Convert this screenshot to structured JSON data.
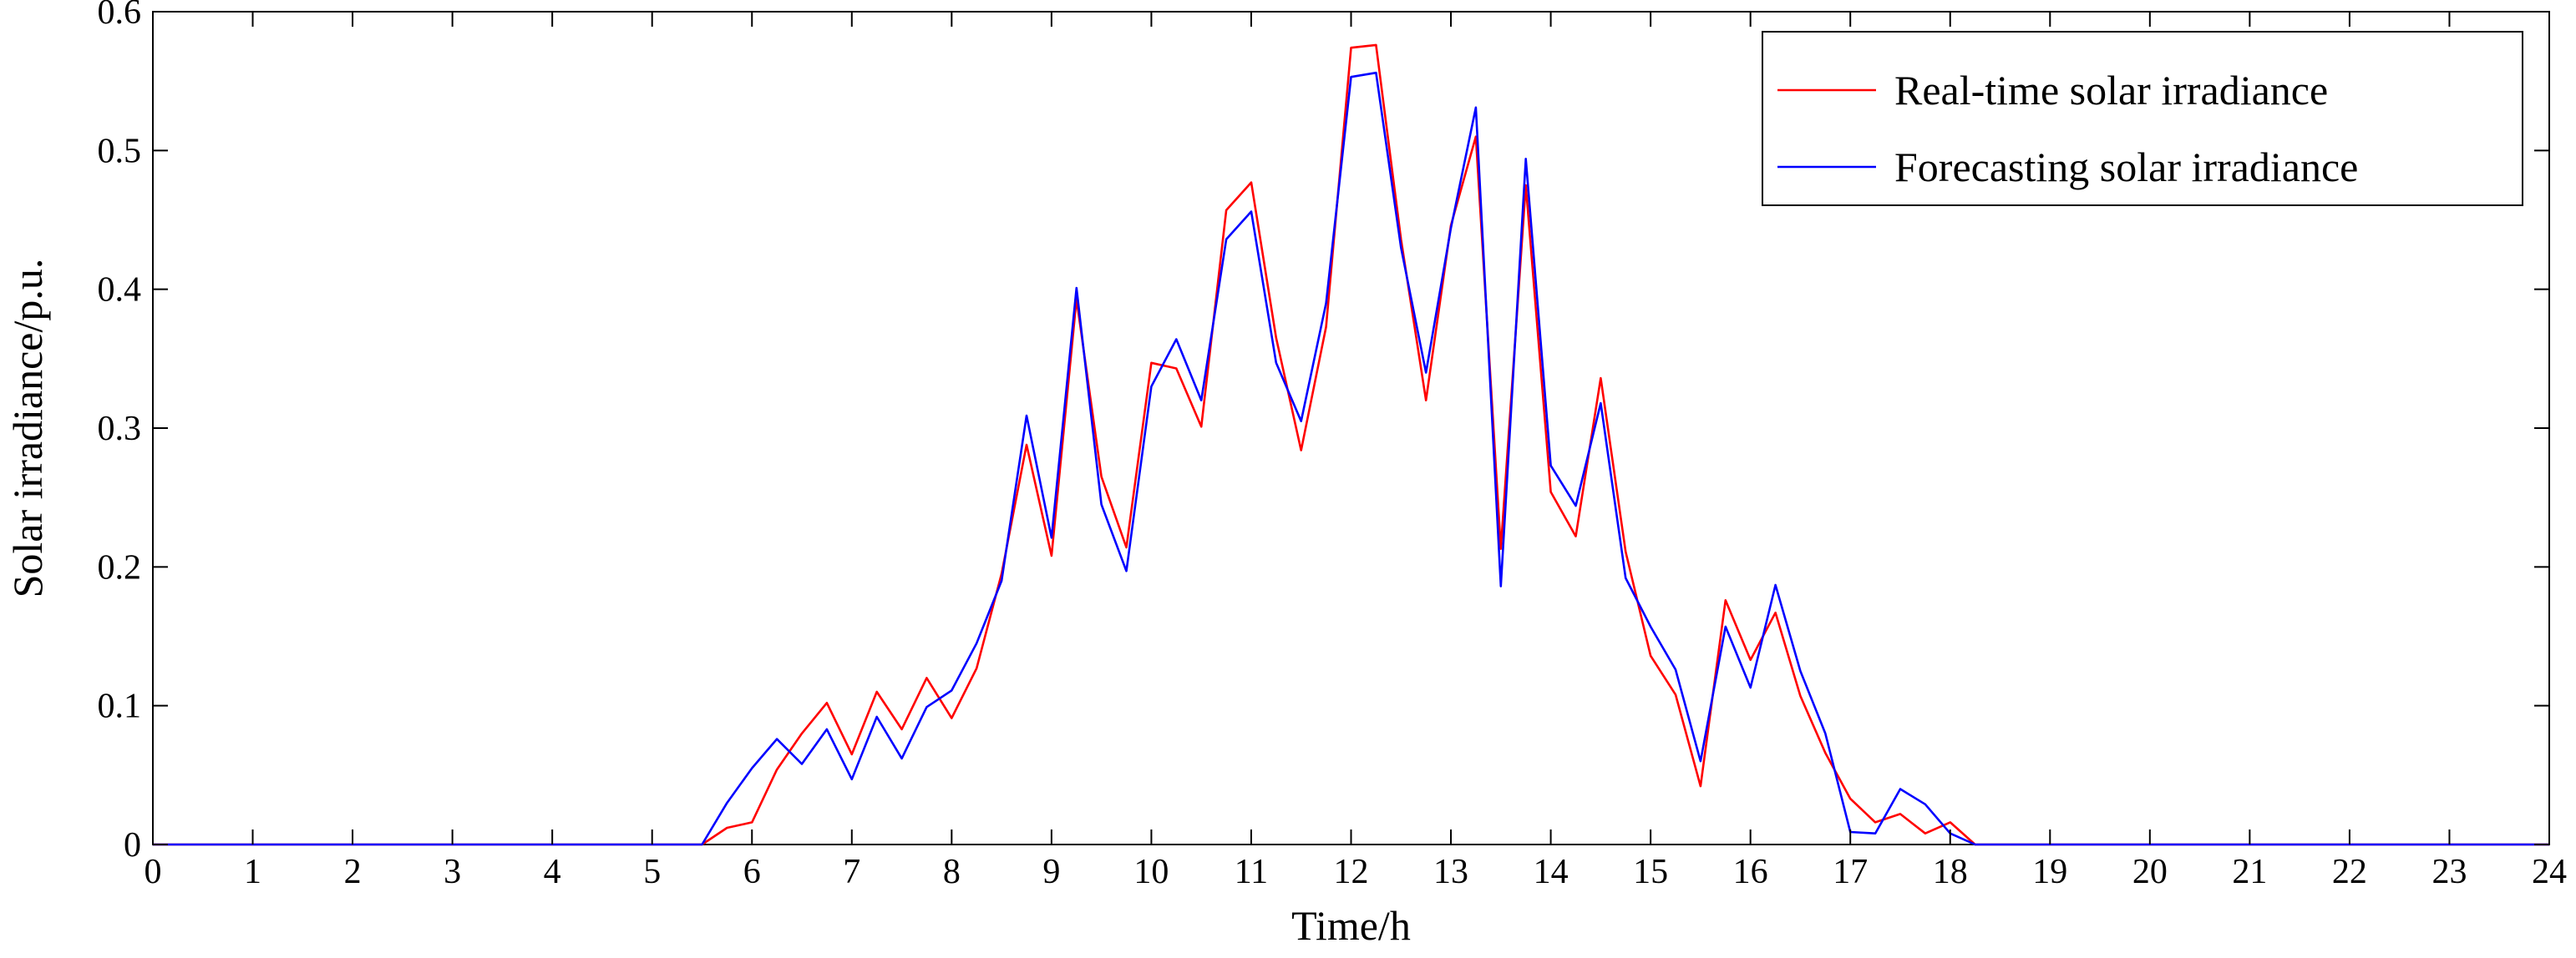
{
  "chart_data": {
    "type": "line",
    "title": "",
    "xlabel": "Time/h",
    "ylabel": "Solar irradiance/p.u.",
    "xlim": [
      0,
      24
    ],
    "ylim": [
      0,
      0.6
    ],
    "xticks": [
      0,
      1,
      2,
      3,
      4,
      5,
      6,
      7,
      8,
      9,
      10,
      11,
      12,
      13,
      14,
      15,
      16,
      17,
      18,
      19,
      20,
      21,
      22,
      23,
      24
    ],
    "yticks": [
      0,
      0.1,
      0.2,
      0.3,
      0.4,
      0.5,
      0.6
    ],
    "ytick_labels": [
      "0",
      "0.1",
      "0.2",
      "0.3",
      "0.4",
      "0.5",
      "0.6"
    ],
    "grid": false,
    "legend_position": "top-right",
    "series": [
      {
        "name": "Real-time solar irradiance",
        "color": "#ff0000",
        "x": [
          0,
          5.5,
          5.75,
          6,
          6.25,
          6.5,
          6.75,
          7,
          7.25,
          7.5,
          7.75,
          8,
          8.25,
          8.5,
          8.75,
          9,
          9.25,
          9.5,
          9.75,
          10,
          10.25,
          10.5,
          10.75,
          11,
          11.25,
          11.5,
          11.75,
          12,
          12.25,
          12.5,
          12.75,
          13,
          13.25,
          13.5,
          13.75,
          14,
          14.25,
          14.5,
          14.75,
          15,
          15.25,
          15.5,
          15.75,
          16,
          16.25,
          16.5,
          16.75,
          17,
          17.25,
          17.5,
          17.75,
          18,
          18.25,
          24
        ],
        "y": [
          0,
          0,
          0.012,
          0.016,
          0.054,
          0.08,
          0.102,
          0.065,
          0.11,
          0.083,
          0.12,
          0.091,
          0.127,
          0.195,
          0.288,
          0.208,
          0.393,
          0.265,
          0.214,
          0.347,
          0.343,
          0.301,
          0.457,
          0.477,
          0.365,
          0.284,
          0.373,
          0.574,
          0.576,
          0.436,
          0.32,
          0.446,
          0.51,
          0.213,
          0.475,
          0.254,
          0.222,
          0.336,
          0.211,
          0.136,
          0.108,
          0.042,
          0.176,
          0.133,
          0.167,
          0.107,
          0.066,
          0.033,
          0.016,
          0.022,
          0.008,
          0.016,
          0,
          0
        ]
      },
      {
        "name": "Forecasting solar irradiance",
        "color": "#0000ff",
        "x": [
          0,
          5.5,
          5.75,
          6,
          6.25,
          6.5,
          6.75,
          7,
          7.25,
          7.5,
          7.75,
          8,
          8.25,
          8.5,
          8.75,
          9,
          9.25,
          9.5,
          9.75,
          10,
          10.25,
          10.5,
          10.75,
          11,
          11.25,
          11.5,
          11.75,
          12,
          12.25,
          12.5,
          12.75,
          13,
          13.25,
          13.5,
          13.75,
          14,
          14.25,
          14.5,
          14.75,
          15,
          15.25,
          15.5,
          15.75,
          16,
          16.25,
          16.5,
          16.75,
          17,
          17.25,
          17.5,
          17.75,
          18,
          18.25,
          24
        ],
        "y": [
          0,
          0,
          0.03,
          0.055,
          0.076,
          0.058,
          0.083,
          0.047,
          0.092,
          0.062,
          0.099,
          0.111,
          0.145,
          0.19,
          0.309,
          0.221,
          0.401,
          0.245,
          0.197,
          0.33,
          0.364,
          0.32,
          0.436,
          0.456,
          0.347,
          0.305,
          0.39,
          0.553,
          0.556,
          0.43,
          0.34,
          0.444,
          0.531,
          0.186,
          0.494,
          0.273,
          0.244,
          0.318,
          0.192,
          0.157,
          0.126,
          0.06,
          0.157,
          0.113,
          0.187,
          0.125,
          0.08,
          0.009,
          0.008,
          0.04,
          0.029,
          0.008,
          0,
          0
        ]
      }
    ]
  }
}
